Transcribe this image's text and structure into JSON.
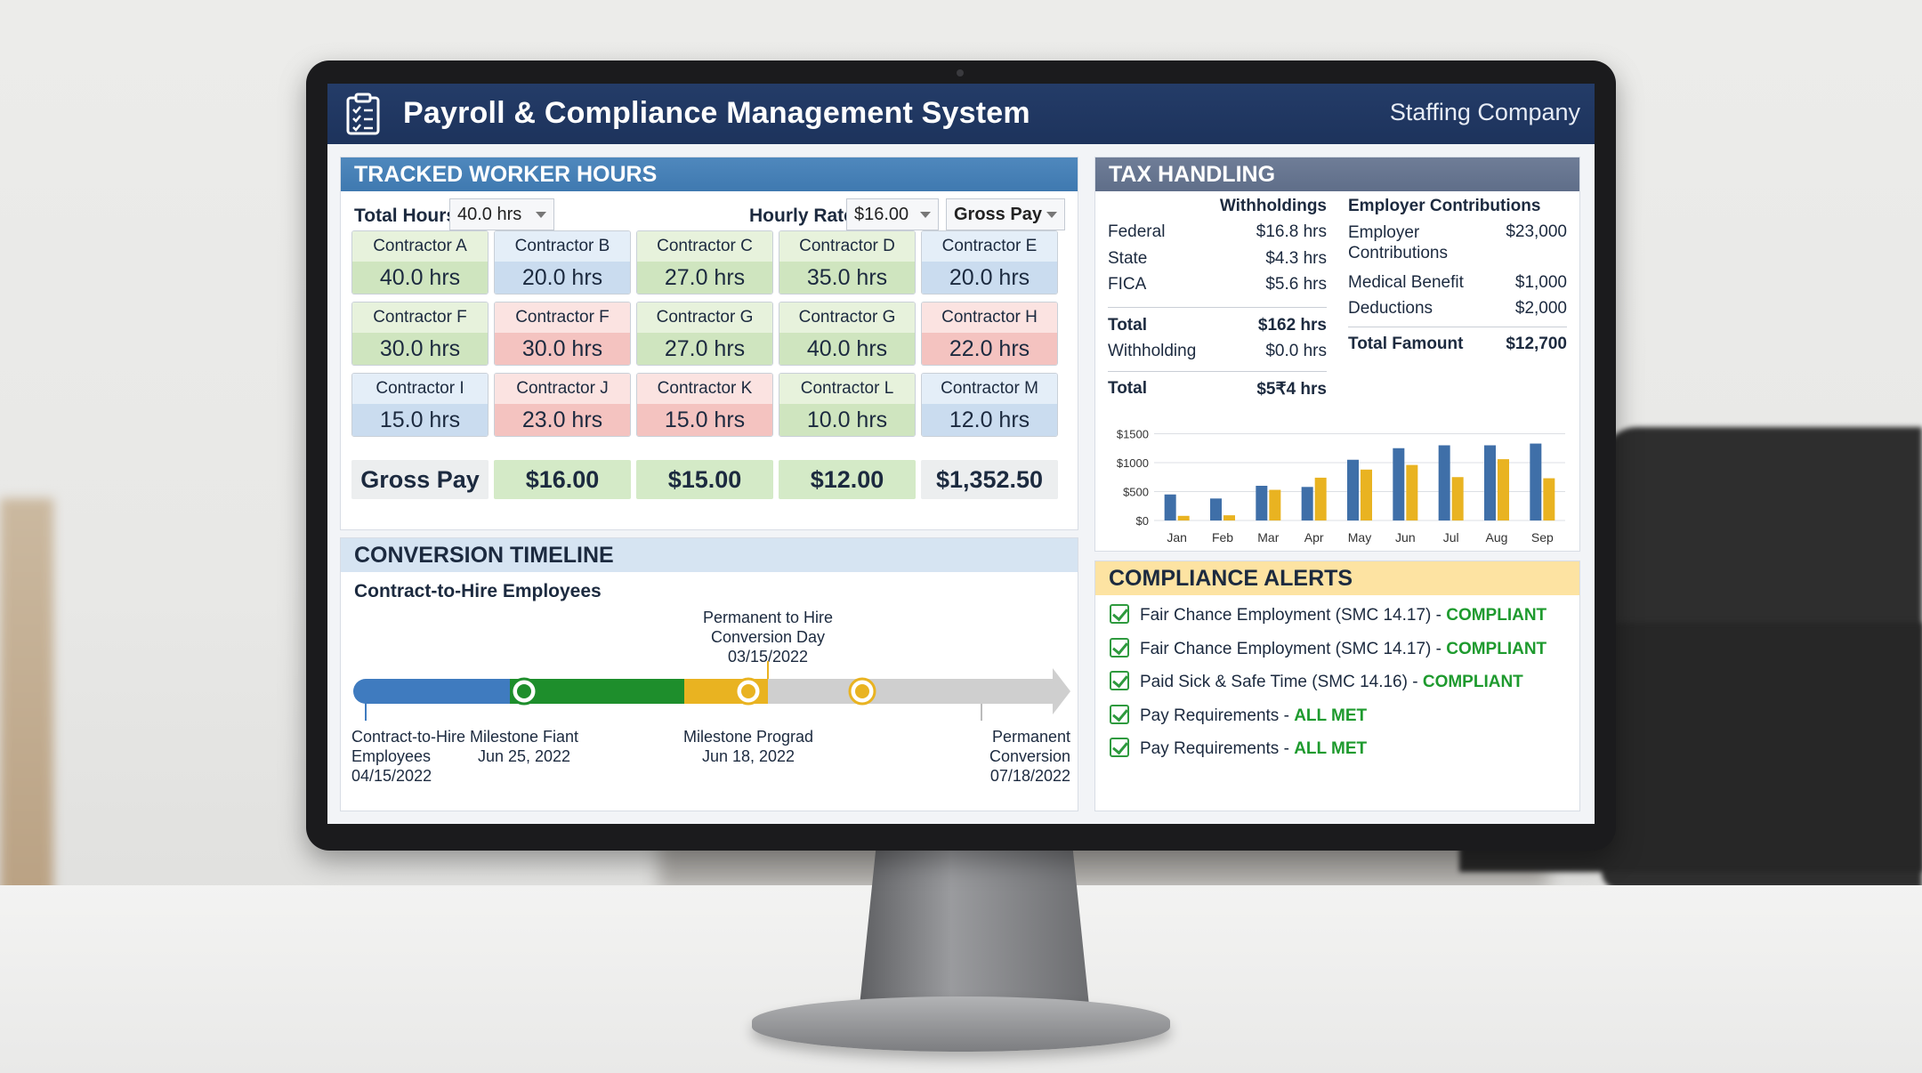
{
  "header": {
    "title": "Payroll & Compliance Management System",
    "company": "Staffing Company"
  },
  "hours": {
    "section_title": "TRACKED WORKER HOURS",
    "total_hours_label": "Total Hours",
    "total_hours_value": "40.0 hrs",
    "hourly_rate_label": "Hourly Rate",
    "hourly_rate_value": "$16.00",
    "gross_pay_select": "Gross Pay",
    "contractors": [
      {
        "name": "Contractor A",
        "hours": "40.0 hrs",
        "status": "green"
      },
      {
        "name": "Contractor B",
        "hours": "20.0 hrs",
        "status": "blue"
      },
      {
        "name": "Contractor C",
        "hours": "27.0 hrs",
        "status": "green"
      },
      {
        "name": "Contractor D",
        "hours": "35.0 hrs",
        "status": "green"
      },
      {
        "name": "Contractor E",
        "hours": "20.0 hrs",
        "status": "blue"
      },
      {
        "name": "Contractor F",
        "hours": "30.0 hrs",
        "status": "green"
      },
      {
        "name": "Contractor F",
        "hours": "30.0 hrs",
        "status": "red"
      },
      {
        "name": "Contractor G",
        "hours": "27.0 hrs",
        "status": "green"
      },
      {
        "name": "Contractor G",
        "hours": "40.0 hrs",
        "status": "green"
      },
      {
        "name": "Contractor H",
        "hours": "22.0 hrs",
        "status": "red"
      },
      {
        "name": "Contractor I",
        "hours": "15.0 hrs",
        "status": "blue"
      },
      {
        "name": "Contractor J",
        "hours": "23.0 hrs",
        "status": "red"
      },
      {
        "name": "Contractor K",
        "hours": "15.0 hrs",
        "status": "red"
      },
      {
        "name": "Contractor L",
        "hours": "10.0 hrs",
        "status": "green"
      },
      {
        "name": "Contractor M",
        "hours": "12.0 hrs",
        "status": "blue"
      }
    ],
    "pay_row": [
      "Gross Pay",
      "$16.00",
      "$15.00",
      "$12.00",
      "$1,352.50"
    ]
  },
  "timeline": {
    "section_title": "CONVERSION TIMELINE",
    "subtitle": "Contract-to-Hire Employees",
    "top_label": [
      "Permanent to Hire",
      "Conversion Day",
      "03/15/2022"
    ],
    "points": [
      {
        "lines": [
          "Contract-to-Hire",
          "Employees",
          "04/15/2022"
        ]
      },
      {
        "lines": [
          "Milestone Fiant",
          "Jun 25, 2022"
        ]
      },
      {
        "lines": [
          "Milestone Prograd",
          "Jun 18, 2022"
        ]
      },
      {
        "lines": [
          "Permanent",
          "Conversion",
          "07/18/2022"
        ]
      }
    ],
    "colors": {
      "blue": "#3f7bbf",
      "green": "#1e8e2c",
      "yellow": "#e9b321",
      "grey": "#cfcfcf"
    }
  },
  "tax": {
    "section_title": "TAX HANDLING",
    "withholdings_title": "Withholdings",
    "withholdings": [
      {
        "label": "Federal",
        "value": "$16.8 hrs"
      },
      {
        "label": "State",
        "value": "$4.3 hrs"
      },
      {
        "label": "FICA",
        "value": "$5.6 hrs"
      }
    ],
    "total1_label": "Total",
    "total1_value": "$162 hrs",
    "withholding_label": "Withholding",
    "withholding_value": "$0.0 hrs",
    "total2_label": "Total",
    "total2_value": "$5₹4 hrs",
    "employer_title": "Employer Contributions",
    "employer_rows": [
      {
        "label": "Employer Contributions",
        "value": "$23,000"
      },
      {
        "label": "Medical Benefit",
        "value": "$1,000"
      },
      {
        "label": "Deductions",
        "value": "$2,000"
      }
    ],
    "total_famount_label": "Total Famount",
    "total_famount_value": "$12,700"
  },
  "chart_data": {
    "type": "bar",
    "categories": [
      "Jan",
      "Feb",
      "Mar",
      "Apr",
      "May",
      "Jun",
      "Jul",
      "Aug",
      "Sep"
    ],
    "series": [
      {
        "values": [
          450,
          380,
          600,
          580,
          1050,
          1250,
          1300,
          1300,
          1330
        ],
        "color": "#3f6fa8"
      },
      {
        "values": [
          80,
          90,
          530,
          740,
          880,
          960,
          750,
          1060,
          730
        ],
        "color": "#e9b321"
      }
    ],
    "yticks": [
      "$0",
      "$500",
      "$1000",
      "$1500"
    ],
    "ylim": [
      0,
      1600
    ],
    "grid": true
  },
  "compliance": {
    "section_title": "COMPLIANCE ALERTS",
    "items": [
      {
        "label": "Fair Chance Employment (SMC 14.17) - ",
        "status": "COMPLIANT"
      },
      {
        "label": "Fair Chance Employment (SMC 14.17) - ",
        "status": "COMPLIANT"
      },
      {
        "label": "Paid Sick & Safe Time (SMC 14.16) - ",
        "status": "COMPLIANT"
      },
      {
        "label": "Pay Requirements - ",
        "status": "ALL MET"
      },
      {
        "label": "Pay Requirements - ",
        "status": "ALL MET"
      }
    ]
  }
}
